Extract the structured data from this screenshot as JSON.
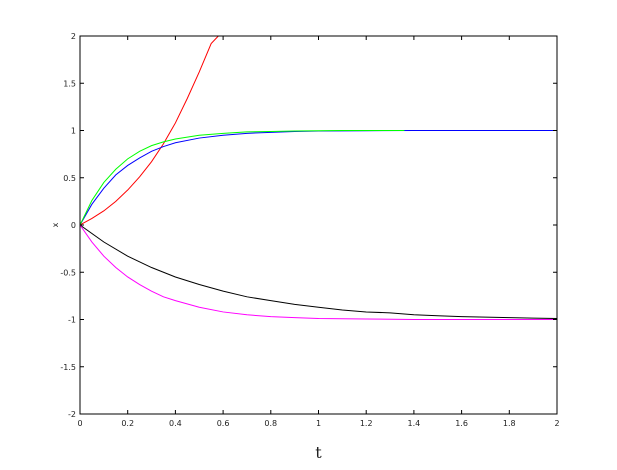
{
  "chart_data": {
    "type": "line",
    "title": "",
    "xlabel": "t",
    "ylabel": "x",
    "xlim": [
      0,
      2
    ],
    "ylim": [
      -2,
      2
    ],
    "xticks": [
      0,
      0.2,
      0.4,
      0.6,
      0.8,
      1,
      1.2,
      1.4,
      1.6,
      1.8,
      2
    ],
    "xtick_labels": [
      "0",
      "0.2",
      "0.4",
      "0.6",
      "0.8",
      "1",
      "1.2",
      "1.4",
      "1.6",
      "1.8",
      "2"
    ],
    "yticks": [
      -2,
      -1.5,
      -1,
      -0.5,
      0,
      0.5,
      1,
      1.5,
      2
    ],
    "ytick_labels": [
      "-2",
      "-1.5",
      "-1",
      "-0.5",
      "0",
      "0.5",
      "1",
      "1.5",
      "2"
    ],
    "grid": false,
    "series": [
      {
        "color": "#ff0000",
        "x": [
          0,
          0.05,
          0.1,
          0.15,
          0.2,
          0.25,
          0.3,
          0.35,
          0.4,
          0.45,
          0.5,
          0.55,
          0.58
        ],
        "y": [
          0,
          0.07,
          0.15,
          0.25,
          0.37,
          0.51,
          0.67,
          0.86,
          1.08,
          1.34,
          1.62,
          1.92,
          2.0
        ]
      },
      {
        "color": "#0000ff",
        "x": [
          0,
          0.05,
          0.1,
          0.15,
          0.2,
          0.25,
          0.3,
          0.35,
          0.4,
          0.5,
          0.6,
          0.7,
          0.8,
          0.9,
          1.0,
          1.2,
          1.4,
          1.6,
          1.8,
          2.0
        ],
        "y": [
          0,
          0.22,
          0.39,
          0.53,
          0.63,
          0.71,
          0.78,
          0.83,
          0.87,
          0.92,
          0.95,
          0.97,
          0.98,
          0.99,
          0.995,
          0.998,
          1.0,
          1.0,
          1.0,
          1.0
        ]
      },
      {
        "color": "#00ff00",
        "x": [
          0,
          0.05,
          0.1,
          0.15,
          0.2,
          0.25,
          0.3,
          0.35,
          0.4,
          0.5,
          0.6,
          0.7,
          0.8,
          0.9,
          1.0,
          1.1,
          1.2,
          1.3,
          1.36
        ],
        "y": [
          0,
          0.26,
          0.45,
          0.59,
          0.7,
          0.78,
          0.84,
          0.88,
          0.91,
          0.95,
          0.97,
          0.985,
          0.99,
          0.995,
          0.998,
          1.0,
          1.0,
          1.0,
          1.0
        ]
      },
      {
        "color": "#000000",
        "x": [
          0,
          0.1,
          0.2,
          0.3,
          0.4,
          0.5,
          0.6,
          0.7,
          0.8,
          0.9,
          1.0,
          1.1,
          1.2,
          1.3,
          1.4,
          1.5,
          1.6,
          1.7,
          1.8,
          1.9,
          2.0
        ],
        "y": [
          0,
          -0.18,
          -0.33,
          -0.45,
          -0.55,
          -0.63,
          -0.7,
          -0.76,
          -0.8,
          -0.84,
          -0.87,
          -0.9,
          -0.92,
          -0.93,
          -0.95,
          -0.96,
          -0.97,
          -0.975,
          -0.98,
          -0.985,
          -0.99
        ]
      },
      {
        "color": "#ff00ff",
        "x": [
          0,
          0.05,
          0.1,
          0.15,
          0.2,
          0.25,
          0.3,
          0.35,
          0.4,
          0.5,
          0.6,
          0.7,
          0.8,
          0.9,
          1.0,
          1.2,
          1.4,
          1.6,
          1.8,
          2.0
        ],
        "y": [
          0,
          -0.18,
          -0.33,
          -0.45,
          -0.55,
          -0.63,
          -0.7,
          -0.76,
          -0.8,
          -0.87,
          -0.92,
          -0.95,
          -0.97,
          -0.98,
          -0.99,
          -0.995,
          -1.0,
          -1.0,
          -1.0,
          -1.0
        ]
      }
    ]
  }
}
